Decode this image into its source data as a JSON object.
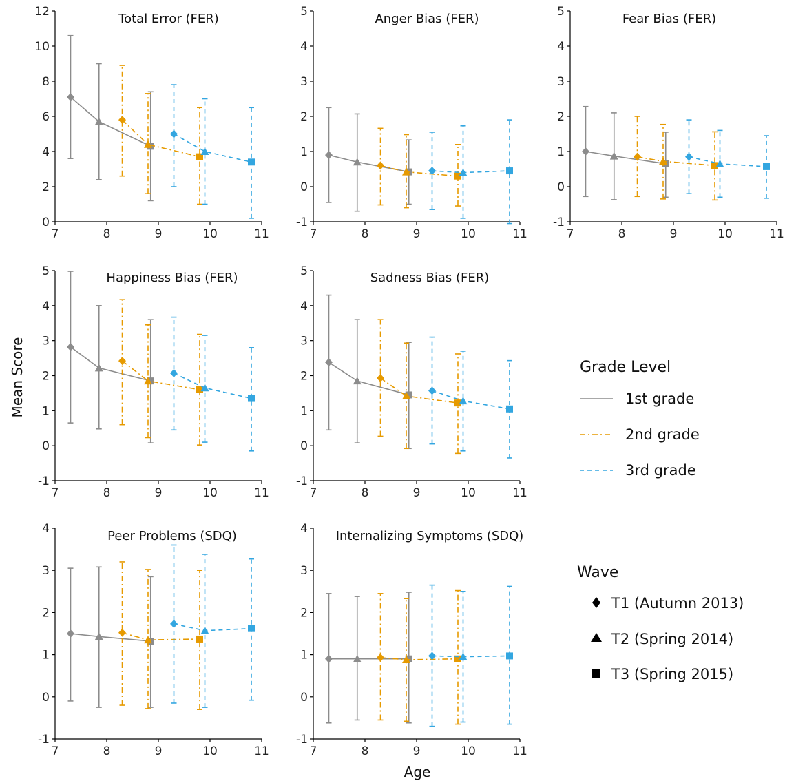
{
  "figure": {
    "ylabel": "Mean Score",
    "xlabel": "Age"
  },
  "legend": {
    "grade_title": "Grade Level",
    "grades": [
      {
        "label": "1st grade",
        "color": "#8c8c8c",
        "dash": "solid"
      },
      {
        "label": "2nd grade",
        "color": "#e69a00",
        "dash": "dashdot"
      },
      {
        "label": "3rd grade",
        "color": "#33a6e0",
        "dash": "dashed"
      }
    ],
    "wave_title": "Wave",
    "waves": [
      {
        "label": "T1 (Autumn 2013)",
        "marker": "diamond"
      },
      {
        "label": "T2 (Spring 2014)",
        "marker": "triangle"
      },
      {
        "label": "T3 (Spring 2015)",
        "marker": "square"
      }
    ]
  },
  "chart_data": [
    {
      "type": "line",
      "title": "Total Error (FER)",
      "xlim": [
        7,
        11
      ],
      "ylim": [
        0,
        12
      ],
      "xticks": [
        "7",
        "8",
        "9",
        "10",
        "11"
      ],
      "yticks": [
        "0",
        "2",
        "4",
        "6",
        "8",
        "10",
        "12"
      ],
      "series": [
        {
          "name": "1st grade",
          "points": [
            {
              "x": 7.3,
              "y": 7.1,
              "lo": 3.6,
              "hi": 10.6
            },
            {
              "x": 7.85,
              "y": 5.7,
              "lo": 2.4,
              "hi": 9.0
            },
            {
              "x": 8.85,
              "y": 4.3,
              "lo": 1.2,
              "hi": 7.4
            }
          ]
        },
        {
          "name": "2nd grade",
          "points": [
            {
              "x": 8.3,
              "y": 5.8,
              "lo": 2.6,
              "hi": 8.9
            },
            {
              "x": 8.8,
              "y": 4.4,
              "lo": 1.6,
              "hi": 7.3
            },
            {
              "x": 9.8,
              "y": 3.7,
              "lo": 1.0,
              "hi": 6.5
            }
          ]
        },
        {
          "name": "3rd grade",
          "points": [
            {
              "x": 9.3,
              "y": 5.0,
              "lo": 2.0,
              "hi": 7.8
            },
            {
              "x": 9.9,
              "y": 4.0,
              "lo": 1.0,
              "hi": 7.0
            },
            {
              "x": 10.8,
              "y": 3.4,
              "lo": 0.2,
              "hi": 6.5
            }
          ]
        }
      ]
    },
    {
      "type": "line",
      "title": "Anger Bias (FER)",
      "xlim": [
        7,
        11
      ],
      "ylim": [
        -1,
        5
      ],
      "xticks": [
        "7",
        "8",
        "9",
        "10",
        "11"
      ],
      "yticks": [
        "-1",
        "0",
        "1",
        "2",
        "3",
        "4",
        "5"
      ],
      "series": [
        {
          "name": "1st grade",
          "points": [
            {
              "x": 7.3,
              "y": 0.9,
              "lo": -0.45,
              "hi": 2.25
            },
            {
              "x": 7.85,
              "y": 0.7,
              "lo": -0.7,
              "hi": 2.07
            },
            {
              "x": 8.85,
              "y": 0.42,
              "lo": -0.5,
              "hi": 1.33
            }
          ]
        },
        {
          "name": "2nd grade",
          "points": [
            {
              "x": 8.3,
              "y": 0.6,
              "lo": -0.52,
              "hi": 1.66
            },
            {
              "x": 8.8,
              "y": 0.42,
              "lo": -0.6,
              "hi": 1.48
            },
            {
              "x": 9.8,
              "y": 0.3,
              "lo": -0.55,
              "hi": 1.2
            }
          ]
        },
        {
          "name": "3rd grade",
          "points": [
            {
              "x": 9.3,
              "y": 0.45,
              "lo": -0.65,
              "hi": 1.55
            },
            {
              "x": 9.9,
              "y": 0.4,
              "lo": -0.9,
              "hi": 1.73
            },
            {
              "x": 10.8,
              "y": 0.45,
              "lo": -1.05,
              "hi": 1.9
            }
          ]
        }
      ]
    },
    {
      "type": "line",
      "title": "Fear Bias (FER)",
      "xlim": [
        7,
        11
      ],
      "ylim": [
        -1,
        5
      ],
      "xticks": [
        "7",
        "8",
        "9",
        "10",
        "11"
      ],
      "yticks": [
        "-1",
        "0",
        "1",
        "2",
        "3",
        "4",
        "5"
      ],
      "series": [
        {
          "name": "1st grade",
          "points": [
            {
              "x": 7.3,
              "y": 1.0,
              "lo": -0.28,
              "hi": 2.28
            },
            {
              "x": 7.85,
              "y": 0.87,
              "lo": -0.37,
              "hi": 2.1
            },
            {
              "x": 8.85,
              "y": 0.65,
              "lo": -0.3,
              "hi": 1.55
            }
          ]
        },
        {
          "name": "2nd grade",
          "points": [
            {
              "x": 8.3,
              "y": 0.85,
              "lo": -0.28,
              "hi": 2.0
            },
            {
              "x": 8.8,
              "y": 0.72,
              "lo": -0.35,
              "hi": 1.77
            },
            {
              "x": 9.8,
              "y": 0.6,
              "lo": -0.38,
              "hi": 1.56
            }
          ]
        },
        {
          "name": "3rd grade",
          "points": [
            {
              "x": 9.3,
              "y": 0.85,
              "lo": -0.2,
              "hi": 1.9
            },
            {
              "x": 9.9,
              "y": 0.65,
              "lo": -0.3,
              "hi": 1.6
            },
            {
              "x": 10.8,
              "y": 0.57,
              "lo": -0.33,
              "hi": 1.45
            }
          ]
        }
      ]
    },
    {
      "type": "line",
      "title": "Happiness Bias (FER)",
      "xlim": [
        7,
        11
      ],
      "ylim": [
        -1,
        5
      ],
      "xticks": [
        "7",
        "8",
        "9",
        "10",
        "11"
      ],
      "yticks": [
        "-1",
        "0",
        "1",
        "2",
        "3",
        "4",
        "5"
      ],
      "series": [
        {
          "name": "1st grade",
          "points": [
            {
              "x": 7.3,
              "y": 2.82,
              "lo": 0.65,
              "hi": 4.98
            },
            {
              "x": 7.85,
              "y": 2.22,
              "lo": 0.48,
              "hi": 4.0
            },
            {
              "x": 8.85,
              "y": 1.85,
              "lo": 0.08,
              "hi": 3.6
            }
          ]
        },
        {
          "name": "2nd grade",
          "points": [
            {
              "x": 8.3,
              "y": 2.42,
              "lo": 0.6,
              "hi": 4.17
            },
            {
              "x": 8.8,
              "y": 1.85,
              "lo": 0.23,
              "hi": 3.45
            },
            {
              "x": 9.8,
              "y": 1.6,
              "lo": 0.02,
              "hi": 3.18
            }
          ]
        },
        {
          "name": "3rd grade",
          "points": [
            {
              "x": 9.3,
              "y": 2.07,
              "lo": 0.45,
              "hi": 3.67
            },
            {
              "x": 9.9,
              "y": 1.65,
              "lo": 0.1,
              "hi": 3.15
            },
            {
              "x": 10.8,
              "y": 1.35,
              "lo": -0.15,
              "hi": 2.8
            }
          ]
        }
      ]
    },
    {
      "type": "line",
      "title": "Sadness Bias (FER)",
      "xlim": [
        7,
        11
      ],
      "ylim": [
        -1,
        5
      ],
      "xticks": [
        "7",
        "8",
        "9",
        "10",
        "11"
      ],
      "yticks": [
        "-1",
        "0",
        "1",
        "2",
        "3",
        "4",
        "5"
      ],
      "series": [
        {
          "name": "1st grade",
          "points": [
            {
              "x": 7.3,
              "y": 2.38,
              "lo": 0.45,
              "hi": 4.3
            },
            {
              "x": 7.85,
              "y": 1.85,
              "lo": 0.08,
              "hi": 3.6
            },
            {
              "x": 8.85,
              "y": 1.45,
              "lo": -0.08,
              "hi": 2.95
            }
          ]
        },
        {
          "name": "2nd grade",
          "points": [
            {
              "x": 8.3,
              "y": 1.93,
              "lo": 0.27,
              "hi": 3.6
            },
            {
              "x": 8.8,
              "y": 1.42,
              "lo": -0.08,
              "hi": 2.93
            },
            {
              "x": 9.8,
              "y": 1.22,
              "lo": -0.22,
              "hi": 2.62
            }
          ]
        },
        {
          "name": "3rd grade",
          "points": [
            {
              "x": 9.3,
              "y": 1.57,
              "lo": 0.05,
              "hi": 3.1
            },
            {
              "x": 9.9,
              "y": 1.28,
              "lo": -0.15,
              "hi": 2.7
            },
            {
              "x": 10.8,
              "y": 1.05,
              "lo": -0.35,
              "hi": 2.43
            }
          ]
        }
      ]
    },
    {
      "type": "line",
      "title": "Peer Problems (SDQ)",
      "xlim": [
        7,
        11
      ],
      "ylim": [
        -1,
        4
      ],
      "xticks": [
        "7",
        "8",
        "9",
        "10",
        "11"
      ],
      "yticks": [
        "-1",
        "0",
        "1",
        "2",
        "3",
        "4"
      ],
      "series": [
        {
          "name": "1st grade",
          "points": [
            {
              "x": 7.3,
              "y": 1.5,
              "lo": -0.1,
              "hi": 3.05
            },
            {
              "x": 7.85,
              "y": 1.43,
              "lo": -0.25,
              "hi": 3.08
            },
            {
              "x": 8.85,
              "y": 1.32,
              "lo": -0.25,
              "hi": 2.85
            }
          ]
        },
        {
          "name": "2nd grade",
          "points": [
            {
              "x": 8.3,
              "y": 1.52,
              "lo": -0.2,
              "hi": 3.2
            },
            {
              "x": 8.8,
              "y": 1.35,
              "lo": -0.28,
              "hi": 3.02
            },
            {
              "x": 9.8,
              "y": 1.37,
              "lo": -0.3,
              "hi": 3.0
            }
          ]
        },
        {
          "name": "3rd grade",
          "points": [
            {
              "x": 9.3,
              "y": 1.73,
              "lo": -0.15,
              "hi": 3.6
            },
            {
              "x": 9.9,
              "y": 1.57,
              "lo": -0.25,
              "hi": 3.38
            },
            {
              "x": 10.8,
              "y": 1.62,
              "lo": -0.08,
              "hi": 3.27
            }
          ]
        }
      ]
    },
    {
      "type": "line",
      "title": "Internalizing Symptoms (SDQ)",
      "xlim": [
        7,
        11
      ],
      "ylim": [
        -1,
        4
      ],
      "xticks": [
        "7",
        "8",
        "9",
        "10",
        "11"
      ],
      "yticks": [
        "-1",
        "0",
        "1",
        "2",
        "3",
        "4"
      ],
      "series": [
        {
          "name": "1st grade",
          "points": [
            {
              "x": 7.3,
              "y": 0.9,
              "lo": -0.62,
              "hi": 2.45
            },
            {
              "x": 7.85,
              "y": 0.9,
              "lo": -0.55,
              "hi": 2.38
            },
            {
              "x": 8.85,
              "y": 0.9,
              "lo": -0.62,
              "hi": 2.48
            }
          ]
        },
        {
          "name": "2nd grade",
          "points": [
            {
              "x": 8.3,
              "y": 0.93,
              "lo": -0.55,
              "hi": 2.45
            },
            {
              "x": 8.8,
              "y": 0.88,
              "lo": -0.58,
              "hi": 2.33
            },
            {
              "x": 9.8,
              "y": 0.9,
              "lo": -0.65,
              "hi": 2.52
            }
          ]
        },
        {
          "name": "3rd grade",
          "points": [
            {
              "x": 9.3,
              "y": 0.97,
              "lo": -0.7,
              "hi": 2.65
            },
            {
              "x": 9.9,
              "y": 0.95,
              "lo": -0.6,
              "hi": 2.5
            },
            {
              "x": 10.8,
              "y": 0.97,
              "lo": -0.65,
              "hi": 2.62
            }
          ]
        }
      ]
    }
  ]
}
